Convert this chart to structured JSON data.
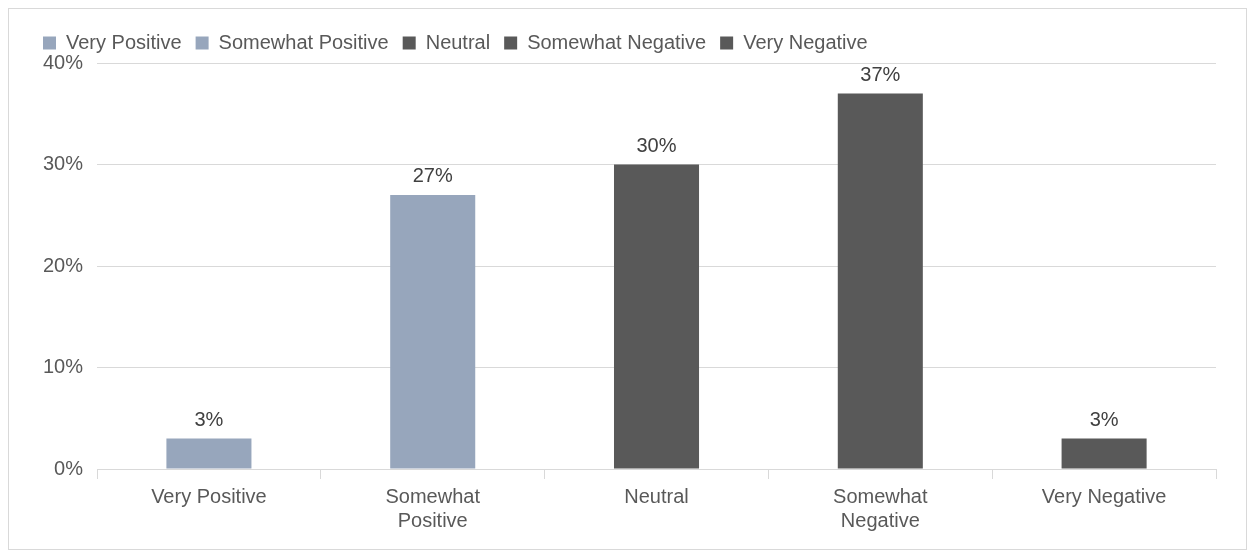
{
  "chart_data": {
    "type": "bar",
    "categories": [
      "Very Positive",
      "Somewhat Positive",
      "Neutral",
      "Somewhat Negative",
      "Very Negative"
    ],
    "series": [
      {
        "name": "Very Positive",
        "color": "#97a6bc",
        "values": [
          3,
          null,
          null,
          null,
          null
        ],
        "value_labels": [
          "3%",
          null,
          null,
          null,
          null
        ]
      },
      {
        "name": "Somewhat Positive",
        "color": "#97a6bc",
        "values": [
          null,
          27,
          null,
          null,
          null
        ],
        "value_labels": [
          null,
          "27%",
          null,
          null,
          null
        ]
      },
      {
        "name": "Neutral",
        "color": "#595959",
        "values": [
          null,
          null,
          30,
          null,
          null
        ],
        "value_labels": [
          null,
          null,
          "30%",
          null,
          null
        ]
      },
      {
        "name": "Somewhat Negative",
        "color": "#595959",
        "values": [
          null,
          null,
          null,
          37,
          null
        ],
        "value_labels": [
          null,
          null,
          null,
          "37%",
          null
        ]
      },
      {
        "name": "Very Negative",
        "color": "#595959",
        "values": [
          null,
          null,
          null,
          null,
          3
        ],
        "value_labels": [
          null,
          null,
          null,
          null,
          "3%"
        ]
      }
    ],
    "ylim": [
      0,
      40
    ],
    "yticks": [
      {
        "value": 0,
        "label": "0%"
      },
      {
        "value": 10,
        "label": "10%"
      },
      {
        "value": 20,
        "label": "20%"
      },
      {
        "value": 30,
        "label": "30%"
      },
      {
        "value": 40,
        "label": "40%"
      }
    ],
    "grid": "y",
    "legend": "top left"
  }
}
